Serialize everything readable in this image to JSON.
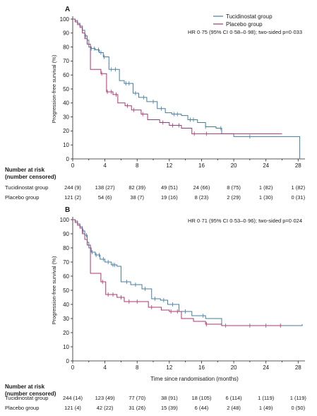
{
  "chart_data": [
    {
      "type": "line",
      "panel_label": "A",
      "ylabel": "Progression-free survival (%)",
      "xlabel": "",
      "xlim": [
        0,
        28.5
      ],
      "ylim": [
        0,
        100
      ],
      "xticks": [
        0,
        4,
        8,
        12,
        16,
        20,
        24,
        28
      ],
      "yticks": [
        0,
        10,
        20,
        30,
        40,
        50,
        60,
        70,
        80,
        90,
        100
      ],
      "annotation": "HR 0·75 (95% CI 0·58–0·98); two-sided p=0·033",
      "legend": {
        "position": "top-right",
        "entries": [
          "Tucidinostat group",
          "Placebo group"
        ]
      },
      "series": [
        {
          "name": "Tucidinostat group",
          "color": "#3f7ea6",
          "x": [
            0,
            0.3,
            0.6,
            0.9,
            1.2,
            1.5,
            1.8,
            2.0,
            2.3,
            2.8,
            3.3,
            3.8,
            4.5,
            5.2,
            5.8,
            6.4,
            7.5,
            8.2,
            9.2,
            10.5,
            11.5,
            12.3,
            13.5,
            14.3,
            15.5,
            16.5,
            17.8,
            18.5,
            20,
            24,
            26,
            28.2,
            28.2
          ],
          "y": [
            100,
            99,
            97,
            95,
            92,
            88,
            85,
            80,
            79,
            78,
            76,
            73,
            64,
            64,
            56,
            54,
            47,
            44,
            41,
            36,
            33,
            32,
            31,
            28,
            26,
            23,
            22,
            18,
            16,
            16,
            16,
            16,
            0
          ]
        },
        {
          "name": "Placebo group",
          "color": "#b5336e",
          "x": [
            0,
            0.3,
            0.6,
            0.9,
            1.2,
            1.5,
            1.8,
            2.2,
            3.5,
            4.2,
            5.0,
            5.6,
            6.5,
            7.3,
            8.5,
            9.3,
            10.8,
            12.0,
            13.5,
            14.8,
            16.0,
            18.0,
            20.0,
            26.0
          ],
          "y": [
            100,
            98,
            96,
            94,
            90,
            86,
            82,
            64,
            61,
            48,
            46,
            40,
            38,
            35,
            32,
            28,
            26,
            24,
            22,
            18,
            18,
            18,
            18,
            18
          ]
        }
      ],
      "censor_marks": {
        "Tucidinostat group": [
          1.2,
          1.6,
          2.3,
          2.7,
          3.2,
          3.5,
          3.9,
          4.8,
          5.3,
          6.6,
          7.0,
          7.8,
          8.8,
          10.0,
          11.0,
          12.6,
          13.0,
          14.6,
          15.0,
          16.5,
          18.4,
          22.0
        ],
        "Placebo group": [
          3.6,
          4.3,
          4.8,
          5.4,
          6.8,
          7.6,
          8.7,
          11.2,
          12.4,
          13.2,
          15.1,
          16.6
        ]
      },
      "risk_table": {
        "header": [
          "Number at risk",
          "(number censored)"
        ],
        "times": [
          0,
          4,
          8,
          12,
          16,
          20,
          24,
          28
        ],
        "rows": [
          {
            "group": "Tucidinostat group",
            "values": [
              "244 (9)",
              "138 (27)",
              "82 (39)",
              "49 (51)",
              "24 (66)",
              "8 (75)",
              "1 (82)",
              "1 (82)"
            ]
          },
          {
            "group": "Placebo group",
            "values": [
              "121 (2)",
              "54 (6)",
              "38 (7)",
              "19 (16)",
              "8 (23)",
              "2 (29)",
              "1 (30)",
              "0 (31)"
            ]
          }
        ]
      }
    },
    {
      "type": "line",
      "panel_label": "B",
      "ylabel": "Progression-free survival (%)",
      "xlabel": "Time since randomisation (months)",
      "xlim": [
        0,
        28.5
      ],
      "ylim": [
        0,
        100
      ],
      "xticks": [
        0,
        4,
        8,
        12,
        16,
        20,
        24,
        28
      ],
      "yticks": [
        0,
        10,
        20,
        30,
        40,
        50,
        60,
        70,
        80,
        90,
        100
      ],
      "annotation": "HR 0·71 (95% CI 0·53–0·96); two-sided p=0·024",
      "series": [
        {
          "name": "Tucidinostat group",
          "color": "#3f7ea6",
          "x": [
            0,
            0.3,
            0.6,
            0.9,
            1.2,
            1.5,
            1.8,
            2.0,
            2.3,
            2.8,
            3.4,
            4.0,
            4.8,
            5.5,
            6.0,
            7.2,
            8.6,
            9.8,
            10.9,
            11.8,
            13.2,
            14.8,
            16.5,
            18.5,
            20,
            24,
            28.5
          ],
          "y": [
            100,
            99,
            97,
            95,
            92,
            89,
            84,
            80,
            77,
            75,
            72,
            70,
            68,
            67,
            56,
            54,
            51,
            44,
            43,
            40,
            35,
            32,
            30,
            25,
            25,
            25,
            26
          ]
        },
        {
          "name": "Placebo group",
          "color": "#b5336e",
          "x": [
            0,
            0.3,
            0.6,
            0.9,
            1.2,
            1.5,
            1.8,
            2.2,
            3.5,
            4.1,
            5.5,
            6.4,
            8.3,
            9.4,
            11.0,
            12.0,
            13.5,
            15.0,
            16.5,
            18.5,
            22.0,
            26.0
          ],
          "y": [
            100,
            98,
            96,
            94,
            90,
            86,
            82,
            62,
            56,
            47,
            45,
            42,
            42,
            38,
            36,
            35,
            30,
            28,
            26,
            25,
            25,
            25
          ]
        }
      ],
      "censor_marks": {
        "Tucidinostat group": [
          1.3,
          1.7,
          2.4,
          2.9,
          3.3,
          3.8,
          4.4,
          5.0,
          5.2,
          6.7,
          7.8,
          9.0,
          10.2,
          11.3,
          12.4,
          14.0,
          16.2,
          19.0,
          22.0,
          24.0
        ],
        "Placebo group": [
          3.7,
          4.4,
          5.0,
          6.0,
          7.0,
          8.0,
          9.8,
          12.2,
          13.0,
          16.6,
          25.8
        ]
      },
      "risk_table": {
        "header": [
          "Number at risk",
          "(number censored)"
        ],
        "times": [
          0,
          4,
          8,
          12,
          16,
          20,
          24,
          28
        ],
        "rows": [
          {
            "group": "Tucidinostat group",
            "values": [
              "244 (14)",
              "123 (49)",
              "77 (70)",
              "38 (91)",
              "18 (105)",
              "6 (114)",
              "1 (119)",
              "1 (119)"
            ]
          },
          {
            "group": "Placebo group",
            "values": [
              "121 (4)",
              "42 (22)",
              "31 (26)",
              "15 (39)",
              "6 (44)",
              "2 (48)",
              "1 (49)",
              "0 (50)"
            ]
          }
        ]
      }
    }
  ]
}
